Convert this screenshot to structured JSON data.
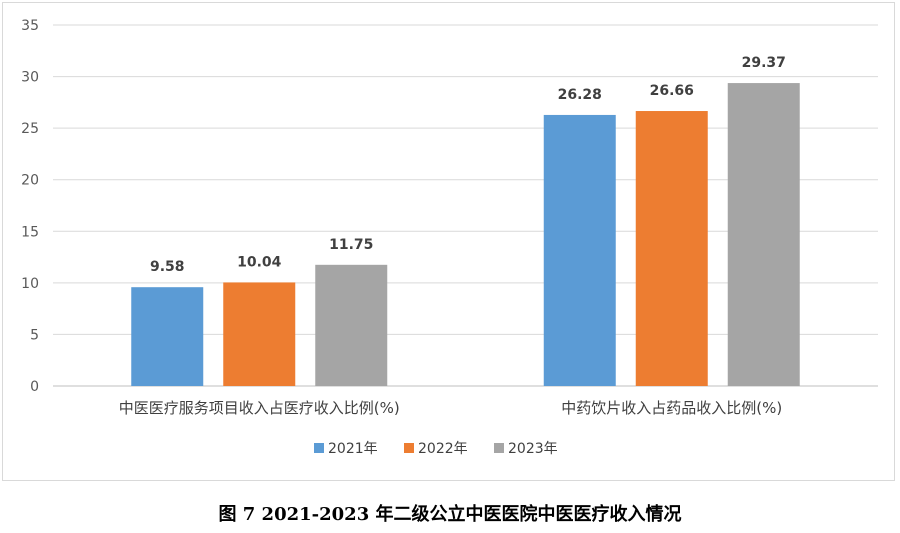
{
  "caption": "图 7 2021-2023 年二级公立中医医院中医医疗收入情况",
  "chart_data": {
    "type": "bar",
    "categories": [
      "中医医疗服务项目收入占医疗收入比例(%)",
      "中药饮片收入占药品收入比例(%)"
    ],
    "series": [
      {
        "name": "2021年",
        "color": "#5b9bd5",
        "values": [
          9.58,
          26.28
        ]
      },
      {
        "name": "2022年",
        "color": "#ed7d31",
        "values": [
          10.04,
          26.66
        ]
      },
      {
        "name": "2023年",
        "color": "#a5a5a5",
        "values": [
          11.75,
          29.37
        ]
      }
    ],
    "data_labels": [
      [
        "9.58",
        "26.28"
      ],
      [
        "10.04",
        "26.66"
      ],
      [
        "11.75",
        "29.37"
      ]
    ],
    "ylim": [
      0,
      35
    ],
    "yticks": [
      0,
      5,
      10,
      15,
      20,
      25,
      30,
      35
    ],
    "grid": true,
    "legend": "bottom-center",
    "xlabel": "",
    "ylabel": ""
  }
}
